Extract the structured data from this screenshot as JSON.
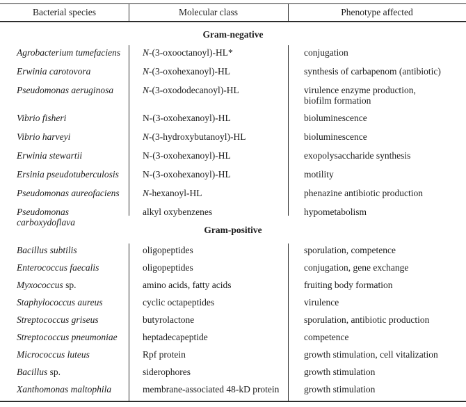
{
  "colors": {
    "background": "#ffffff",
    "text": "#1c1c1c",
    "rule_lines": "#2d2d2d"
  },
  "header": {
    "col1": "Bacterial species",
    "col2": "Molecular class",
    "col3": "Phenotype affected"
  },
  "sections": [
    {
      "title": "Gram-negative",
      "rows": [
        {
          "species_italic": "Agrobacterium tumefaciens",
          "species_rest": "",
          "mol_italic": "N",
          "mol_rest": "-(3-oxooctanoyl)-HL*",
          "phenotype": "conjugation"
        },
        {
          "species_italic": "Erwinia carotovora",
          "species_rest": "",
          "mol_italic": "N",
          "mol_rest": "-(3-oxohexanoyl)-HL",
          "phenotype": "synthesis of carbapenom (antibiotic)"
        },
        {
          "species_italic": "Pseudomonas aeruginosa",
          "species_rest": "",
          "mol_italic": "N",
          "mol_rest": "-(3-oxododecanoyl)-HL",
          "phenotype": "virulence enzyme production,\nbiofilm formation"
        },
        {
          "species_italic": "Vibrio fisheri",
          "species_rest": "",
          "mol_italic": "",
          "mol_rest": "N-(3-oxohexanoyl)-HL",
          "phenotype": "bioluminescence"
        },
        {
          "species_italic": "Vibrio harveyi",
          "species_rest": "",
          "mol_italic": "N",
          "mol_rest": "-(3-hydroxybutanoyl)-HL",
          "phenotype": "bioluminescence"
        },
        {
          "species_italic": "Erwinia stewartii",
          "species_rest": "",
          "mol_italic": "",
          "mol_rest": "N-(3-oxohexanoyl)-HL",
          "phenotype": "exopolysaccharide synthesis"
        },
        {
          "species_italic": "Ersinia pseudotuberculosis",
          "species_rest": "",
          "mol_italic": "",
          "mol_rest": "N-(3-oxohexanoyl)-HL",
          "phenotype": "motility"
        },
        {
          "species_italic": "Pseudomonas aureofaciens",
          "species_rest": "",
          "mol_italic": "N",
          "mol_rest": "-hexanoyl-HL",
          "phenotype": "phenazine antibiotic production"
        },
        {
          "species_italic": "Pseudomonas carboxydoflava",
          "species_rest": "",
          "mol_italic": "",
          "mol_rest": "alkyl oxybenzenes",
          "phenotype": "hypometabolism"
        }
      ]
    },
    {
      "title": "Gram-positive",
      "rows": [
        {
          "species_italic": "Bacillus subtilis",
          "species_rest": "",
          "mol_italic": "",
          "mol_rest": "oligopeptides",
          "phenotype": "sporulation, competence"
        },
        {
          "species_italic": "Enterococcus faecalis",
          "species_rest": "",
          "mol_italic": "",
          "mol_rest": "oligopeptides",
          "phenotype": "conjugation, gene exchange"
        },
        {
          "species_italic": "Myxococcus",
          "species_rest": " sp.",
          "mol_italic": "",
          "mol_rest": "amino acids, fatty acids",
          "phenotype": "fruiting body formation"
        },
        {
          "species_italic": "Staphylococcus aureus",
          "species_rest": "",
          "mol_italic": "",
          "mol_rest": "cyclic octapeptides",
          "phenotype": "virulence"
        },
        {
          "species_italic": "Streptococcus griseus",
          "species_rest": "",
          "mol_italic": "",
          "mol_rest": "butyrolactone",
          "phenotype": "sporulation, antibiotic production"
        },
        {
          "species_italic": "Streptococcus pneumoniae",
          "species_rest": "",
          "mol_italic": "",
          "mol_rest": "heptadecapeptide",
          "phenotype": "competence"
        },
        {
          "species_italic": "Micrococcus luteus",
          "species_rest": "",
          "mol_italic": "",
          "mol_rest": "Rpf protein",
          "phenotype": "growth stimulation, cell vitalization"
        },
        {
          "species_italic": "Bacillus",
          "species_rest": " sp.",
          "mol_italic": "",
          "mol_rest": "siderophores",
          "phenotype": "growth stimulation"
        },
        {
          "species_italic": "Xanthomonas maltophila",
          "species_rest": "",
          "mol_italic": "",
          "mol_rest": "membrane-associated 48-kD protein",
          "phenotype": "growth stimulation"
        }
      ]
    }
  ]
}
